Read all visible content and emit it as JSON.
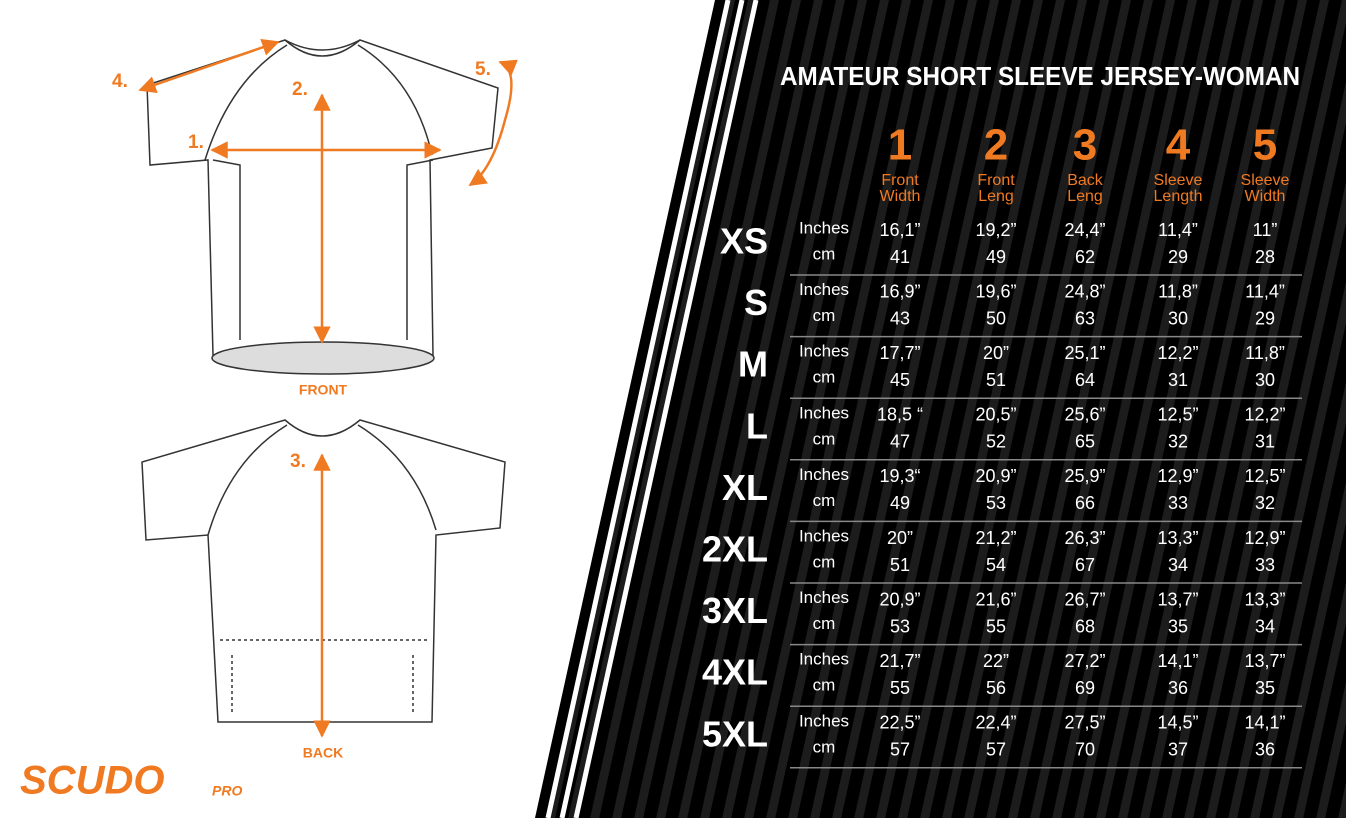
{
  "title": "AMATEUR SHORT SLEEVE JERSEY-WOMAN",
  "diagram": {
    "labels": [
      "1.",
      "2.",
      "3.",
      "4.",
      "5."
    ],
    "front": "FRONT",
    "back": "BACK"
  },
  "logo": {
    "name": "SCUDO",
    "suffix": "PRO"
  },
  "table": {
    "units": {
      "inches": "Inches",
      "cm": "cm"
    },
    "columns": [
      {
        "number": "1",
        "label": [
          "Front",
          "Width"
        ]
      },
      {
        "number": "2",
        "label": [
          "Front",
          "Leng"
        ]
      },
      {
        "number": "3",
        "label": [
          "Back",
          "Leng"
        ]
      },
      {
        "number": "4",
        "label": [
          "Sleeve",
          "Length"
        ]
      },
      {
        "number": "5",
        "label": [
          "Sleeve",
          "Width"
        ]
      }
    ],
    "rows": [
      {
        "size": "XS",
        "inches": [
          "16,1”",
          "19,2”",
          "24,4”",
          "11,4”",
          "11”"
        ],
        "cm": [
          41,
          49,
          62,
          29,
          28
        ]
      },
      {
        "size": "S",
        "inches": [
          "16,9”",
          "19,6”",
          "24,8”",
          "11,8”",
          "11,4”"
        ],
        "cm": [
          43,
          50,
          63,
          30,
          29
        ]
      },
      {
        "size": "M",
        "inches": [
          "17,7”",
          "20”",
          "25,1”",
          "12,2”",
          "11,8”"
        ],
        "cm": [
          45,
          51,
          64,
          31,
          30
        ]
      },
      {
        "size": "L",
        "inches": [
          "18,5 “",
          "20,5”",
          "25,6”",
          "12,5”",
          "12,2”"
        ],
        "cm": [
          47,
          52,
          65,
          32,
          31
        ]
      },
      {
        "size": "XL",
        "inches": [
          "19,3“",
          "20,9”",
          "25,9”",
          "12,9”",
          "12,5”"
        ],
        "cm": [
          49,
          53,
          66,
          33,
          32
        ]
      },
      {
        "size": "2XL",
        "inches": [
          "20”",
          "21,2”",
          "26,3”",
          "13,3”",
          "12,9”"
        ],
        "cm": [
          51,
          54,
          67,
          34,
          33
        ]
      },
      {
        "size": "3XL",
        "inches": [
          "20,9”",
          "21,6”",
          "26,7”",
          "13,7”",
          "13,3”"
        ],
        "cm": [
          53,
          55,
          68,
          35,
          34
        ]
      },
      {
        "size": "4XL",
        "inches": [
          "21,7”",
          "22”",
          "27,2”",
          "14,1”",
          "13,7”"
        ],
        "cm": [
          55,
          56,
          69,
          36,
          35
        ]
      },
      {
        "size": "5XL",
        "inches": [
          "22,5”",
          "22,4”",
          "27,5”",
          "14,5”",
          "14,1”"
        ],
        "cm": [
          57,
          57,
          70,
          37,
          36
        ]
      }
    ]
  }
}
